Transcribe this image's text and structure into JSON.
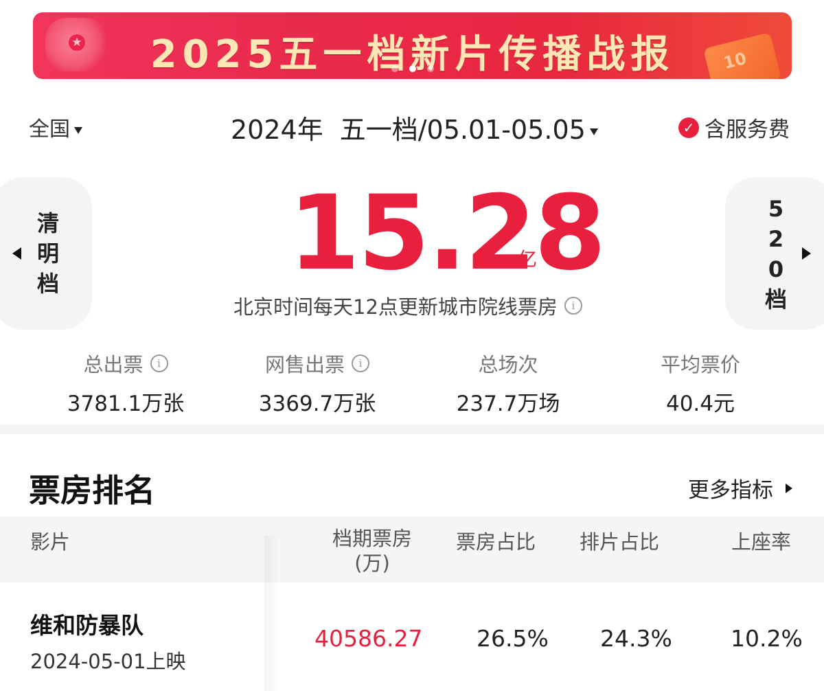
{
  "banner": {
    "title": "2025五一档新片传播战报",
    "badge": "10",
    "dots": 3,
    "active_dot": 1
  },
  "filters": {
    "region": "全国",
    "year": "2024年",
    "period": "五一档/05.01-05.05",
    "service_fee_label": "含服务费",
    "service_fee_checked": true
  },
  "nav": {
    "prev_label": [
      "清",
      "明",
      "档"
    ],
    "next_label": [
      "5",
      "2",
      "0",
      "档"
    ]
  },
  "summary": {
    "box_office": "15.28",
    "unit": "亿",
    "note": "北京时间每天12点更新城市院线票房"
  },
  "stats": [
    {
      "label": "总出票",
      "value": "3781.1万张",
      "info": true
    },
    {
      "label": "网售出票",
      "value": "3369.7万张",
      "info": true
    },
    {
      "label": "总场次",
      "value": "237.7万场",
      "info": false
    },
    {
      "label": "平均票价",
      "value": "40.4元",
      "info": false
    }
  ],
  "ranking": {
    "title": "票房排名",
    "more_label": "更多指标",
    "columns": {
      "film": "影片",
      "box_office": "档期票房",
      "box_office_unit": "(万)",
      "share": "票房占比",
      "screening_share": "排片占比",
      "occupancy": "上座率"
    },
    "rows": [
      {
        "name": "维和防暴队",
        "release": "2024-05-01上映",
        "box_office": "40586.27",
        "share": "26.5%",
        "screening_share": "24.3%",
        "occupancy": "10.2%"
      }
    ]
  },
  "colors": {
    "accent": "#e8203d",
    "banner_text": "#fde7b4",
    "side_bg": "#f4f4f5"
  }
}
